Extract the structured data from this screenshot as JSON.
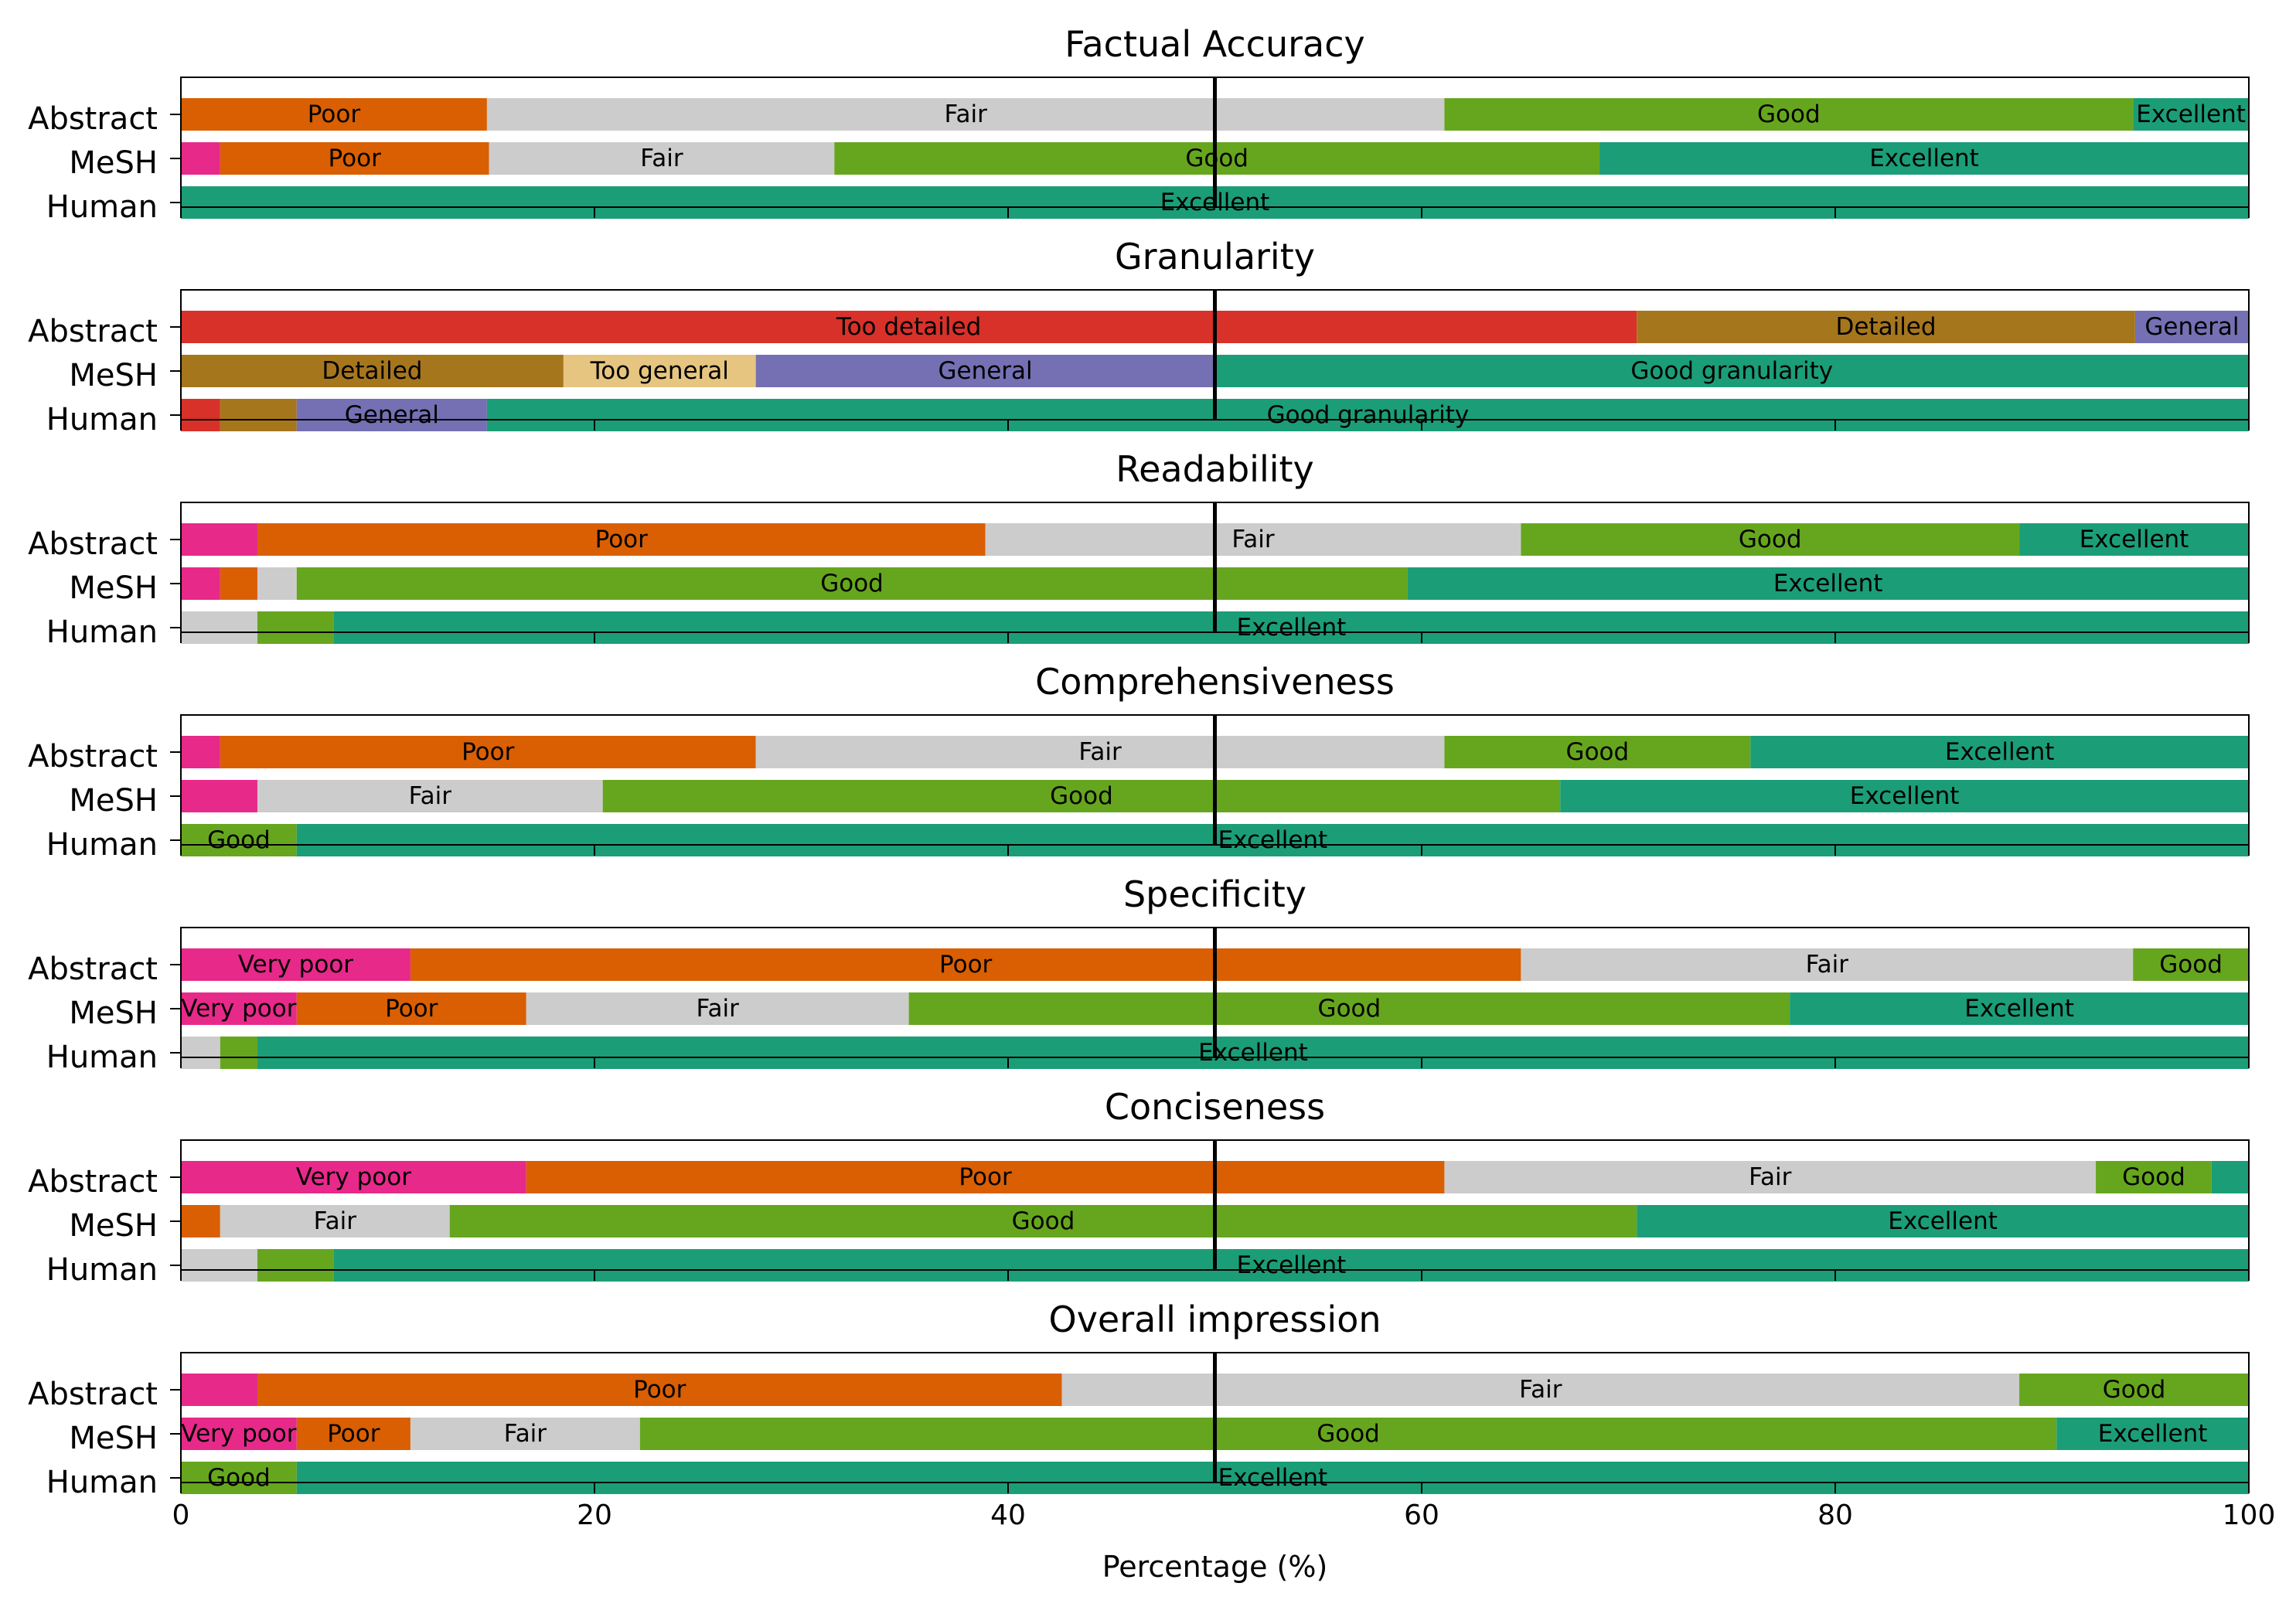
{
  "chart_data": {
    "type": "stacked-horizontal-bar",
    "xlabel": "Percentage (%)",
    "xlim": [
      0,
      100
    ],
    "xticks": [
      0,
      20,
      40,
      60,
      80,
      100
    ],
    "reference_line": 50,
    "colors": {
      "Very poor": "#e7298a",
      "Poor": "#d95f02",
      "Fair": "#cccccc",
      "Good": "#66a61e",
      "Excellent": "#1b9e77",
      "Too detailed": "#d7312a",
      "Detailed": "#a6761d",
      "Too general": "#e6c580",
      "General": "#7570b3",
      "Good granularity": "#1b9e77"
    },
    "panels": [
      {
        "title": "Factual Accuracy",
        "rows": [
          {
            "label": "Abstract",
            "segments": [
              {
                "category": "Poor",
                "value": 14.8,
                "label": "Poor"
              },
              {
                "category": "Fair",
                "value": 46.3,
                "label": "Fair"
              },
              {
                "category": "Good",
                "value": 33.3,
                "label": "Good"
              },
              {
                "category": "Excellent",
                "value": 5.6,
                "label": "Excellent"
              }
            ]
          },
          {
            "label": "MeSH",
            "segments": [
              {
                "category": "Very poor",
                "value": 1.9,
                "label": ""
              },
              {
                "category": "Poor",
                "value": 13.0,
                "label": "Poor"
              },
              {
                "category": "Fair",
                "value": 16.7,
                "label": "Fair"
              },
              {
                "category": "Good",
                "value": 37.0,
                "label": "Good"
              },
              {
                "category": "Excellent",
                "value": 31.4,
                "label": "Excellent"
              }
            ]
          },
          {
            "label": "Human",
            "segments": [
              {
                "category": "Excellent",
                "value": 100.0,
                "label": "Excellent"
              }
            ]
          }
        ]
      },
      {
        "title": "Granularity",
        "rows": [
          {
            "label": "Abstract",
            "segments": [
              {
                "category": "Too detailed",
                "value": 70.4,
                "label": "Too detailed"
              },
              {
                "category": "Detailed",
                "value": 24.1,
                "label": "Detailed"
              },
              {
                "category": "General",
                "value": 5.5,
                "label": "General"
              }
            ]
          },
          {
            "label": "MeSH",
            "segments": [
              {
                "category": "Detailed",
                "value": 18.5,
                "label": "Detailed"
              },
              {
                "category": "Too general",
                "value": 9.3,
                "label": "Too general"
              },
              {
                "category": "General",
                "value": 22.2,
                "label": "General"
              },
              {
                "category": "Good granularity",
                "value": 50.0,
                "label": "Good granularity"
              }
            ]
          },
          {
            "label": "Human",
            "segments": [
              {
                "category": "Too detailed",
                "value": 1.9,
                "label": ""
              },
              {
                "category": "Detailed",
                "value": 3.7,
                "label": ""
              },
              {
                "category": "General",
                "value": 9.2,
                "label": "General"
              },
              {
                "category": "Good granularity",
                "value": 85.2,
                "label": "Good granularity"
              }
            ]
          }
        ]
      },
      {
        "title": "Readability",
        "rows": [
          {
            "label": "Abstract",
            "segments": [
              {
                "category": "Very poor",
                "value": 3.7,
                "label": ""
              },
              {
                "category": "Poor",
                "value": 35.2,
                "label": "Poor"
              },
              {
                "category": "Fair",
                "value": 25.9,
                "label": "Fair"
              },
              {
                "category": "Good",
                "value": 24.1,
                "label": "Good"
              },
              {
                "category": "Excellent",
                "value": 11.1,
                "label": "Excellent"
              }
            ]
          },
          {
            "label": "MeSH",
            "segments": [
              {
                "category": "Very poor",
                "value": 1.9,
                "label": ""
              },
              {
                "category": "Poor",
                "value": 1.8,
                "label": ""
              },
              {
                "category": "Fair",
                "value": 1.9,
                "label": ""
              },
              {
                "category": "Good",
                "value": 53.7,
                "label": "Good"
              },
              {
                "category": "Excellent",
                "value": 40.7,
                "label": "Excellent"
              }
            ]
          },
          {
            "label": "Human",
            "segments": [
              {
                "category": "Fair",
                "value": 3.7,
                "label": ""
              },
              {
                "category": "Good",
                "value": 3.7,
                "label": ""
              },
              {
                "category": "Excellent",
                "value": 92.6,
                "label": "Excellent"
              }
            ]
          }
        ]
      },
      {
        "title": "Comprehensiveness",
        "rows": [
          {
            "label": "Abstract",
            "segments": [
              {
                "category": "Very poor",
                "value": 1.9,
                "label": ""
              },
              {
                "category": "Poor",
                "value": 25.9,
                "label": "Poor"
              },
              {
                "category": "Fair",
                "value": 33.3,
                "label": "Fair"
              },
              {
                "category": "Good",
                "value": 14.8,
                "label": "Good"
              },
              {
                "category": "Excellent",
                "value": 24.1,
                "label": "Excellent"
              }
            ]
          },
          {
            "label": "MeSH",
            "segments": [
              {
                "category": "Very poor",
                "value": 3.7,
                "label": ""
              },
              {
                "category": "Fair",
                "value": 16.7,
                "label": "Fair"
              },
              {
                "category": "Good",
                "value": 46.3,
                "label": "Good"
              },
              {
                "category": "Excellent",
                "value": 33.3,
                "label": "Excellent"
              }
            ]
          },
          {
            "label": "Human",
            "segments": [
              {
                "category": "Good",
                "value": 5.6,
                "label": "Good"
              },
              {
                "category": "Excellent",
                "value": 94.4,
                "label": "Excellent"
              }
            ]
          }
        ]
      },
      {
        "title": "Specificity",
        "rows": [
          {
            "label": "Abstract",
            "segments": [
              {
                "category": "Very poor",
                "value": 11.1,
                "label": "Very poor"
              },
              {
                "category": "Poor",
                "value": 53.7,
                "label": "Poor"
              },
              {
                "category": "Fair",
                "value": 29.6,
                "label": "Fair"
              },
              {
                "category": "Good",
                "value": 5.6,
                "label": "Good"
              }
            ]
          },
          {
            "label": "MeSH",
            "segments": [
              {
                "category": "Very poor",
                "value": 5.6,
                "label": "Very poor"
              },
              {
                "category": "Poor",
                "value": 11.1,
                "label": "Poor"
              },
              {
                "category": "Fair",
                "value": 18.5,
                "label": "Fair"
              },
              {
                "category": "Good",
                "value": 42.6,
                "label": "Good"
              },
              {
                "category": "Excellent",
                "value": 22.2,
                "label": "Excellent"
              }
            ]
          },
          {
            "label": "Human",
            "segments": [
              {
                "category": "Fair",
                "value": 1.9,
                "label": ""
              },
              {
                "category": "Good",
                "value": 1.8,
                "label": ""
              },
              {
                "category": "Excellent",
                "value": 96.3,
                "label": "Excellent"
              }
            ]
          }
        ]
      },
      {
        "title": "Conciseness",
        "rows": [
          {
            "label": "Abstract",
            "segments": [
              {
                "category": "Very poor",
                "value": 16.7,
                "label": "Very poor"
              },
              {
                "category": "Poor",
                "value": 44.4,
                "label": "Poor"
              },
              {
                "category": "Fair",
                "value": 31.5,
                "label": "Fair"
              },
              {
                "category": "Good",
                "value": 5.6,
                "label": "Good"
              },
              {
                "category": "Excellent",
                "value": 1.8,
                "label": ""
              }
            ]
          },
          {
            "label": "MeSH",
            "segments": [
              {
                "category": "Poor",
                "value": 1.9,
                "label": ""
              },
              {
                "category": "Fair",
                "value": 11.1,
                "label": "Fair"
              },
              {
                "category": "Good",
                "value": 57.4,
                "label": "Good"
              },
              {
                "category": "Excellent",
                "value": 29.6,
                "label": "Excellent"
              }
            ]
          },
          {
            "label": "Human",
            "segments": [
              {
                "category": "Fair",
                "value": 3.7,
                "label": ""
              },
              {
                "category": "Good",
                "value": 3.7,
                "label": ""
              },
              {
                "category": "Excellent",
                "value": 92.6,
                "label": "Excellent"
              }
            ]
          }
        ]
      },
      {
        "title": "Overall impression",
        "rows": [
          {
            "label": "Abstract",
            "segments": [
              {
                "category": "Very poor",
                "value": 3.7,
                "label": ""
              },
              {
                "category": "Poor",
                "value": 38.9,
                "label": "Poor"
              },
              {
                "category": "Fair",
                "value": 46.3,
                "label": "Fair"
              },
              {
                "category": "Good",
                "value": 11.1,
                "label": "Good"
              }
            ]
          },
          {
            "label": "MeSH",
            "segments": [
              {
                "category": "Very poor",
                "value": 5.6,
                "label": "Very poor"
              },
              {
                "category": "Poor",
                "value": 5.5,
                "label": "Poor"
              },
              {
                "category": "Fair",
                "value": 11.1,
                "label": "Fair"
              },
              {
                "category": "Good",
                "value": 68.5,
                "label": "Good"
              },
              {
                "category": "Excellent",
                "value": 9.3,
                "label": "Excellent"
              }
            ]
          },
          {
            "label": "Human",
            "segments": [
              {
                "category": "Good",
                "value": 5.6,
                "label": "Good"
              },
              {
                "category": "Excellent",
                "value": 94.4,
                "label": "Excellent"
              }
            ]
          }
        ]
      }
    ]
  }
}
